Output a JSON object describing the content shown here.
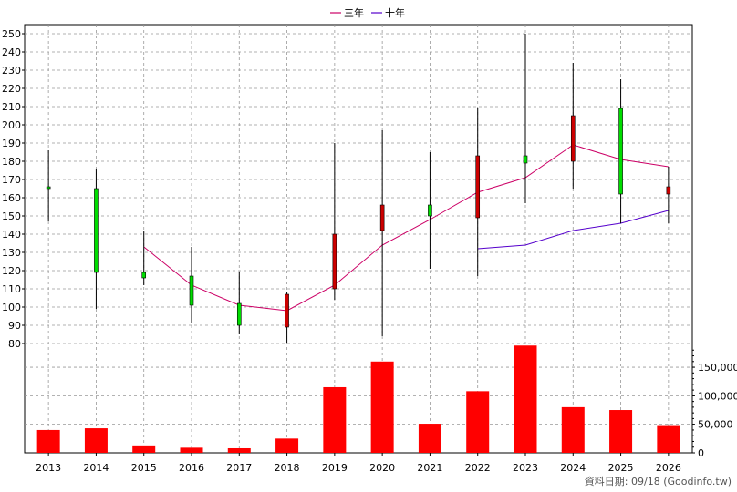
{
  "chart_data": {
    "type": "candlestick+bar",
    "legend": [
      {
        "name": "三年",
        "color": "#cc0066"
      },
      {
        "name": "十年",
        "color": "#5500cc"
      }
    ],
    "categories": [
      "2013",
      "2014",
      "2015",
      "2016",
      "2017",
      "2018",
      "2019",
      "2020",
      "2021",
      "2022",
      "2023",
      "2024",
      "2025",
      "2026"
    ],
    "price_axis": {
      "ticks": [
        80,
        90,
        100,
        110,
        120,
        130,
        140,
        150,
        160,
        170,
        180,
        190,
        200,
        210,
        220,
        230,
        240,
        250
      ],
      "ylim": [
        76,
        255
      ]
    },
    "volume_axis": {
      "ticks": [
        0,
        50000,
        100000,
        150000
      ],
      "tick_labels": [
        "0",
        "50,000",
        "100,000",
        "150,000"
      ],
      "ylim": [
        0,
        190000
      ]
    },
    "candles": [
      {
        "x": "2013",
        "open": 165,
        "close": 166,
        "high": 186,
        "low": 147
      },
      {
        "x": "2014",
        "open": 119,
        "close": 165,
        "high": 176,
        "low": 99
      },
      {
        "x": "2015",
        "open": 116,
        "close": 119,
        "high": 142,
        "low": 112
      },
      {
        "x": "2016",
        "open": 101,
        "close": 117,
        "high": 133,
        "low": 91
      },
      {
        "x": "2017",
        "open": 90,
        "close": 102,
        "high": 119,
        "low": 85
      },
      {
        "x": "2018",
        "open": 107,
        "close": 89,
        "high": 108,
        "low": 80
      },
      {
        "x": "2019",
        "open": 140,
        "close": 110,
        "high": 190,
        "low": 104
      },
      {
        "x": "2020",
        "open": 156,
        "close": 142,
        "high": 197,
        "low": 84
      },
      {
        "x": "2021",
        "open": 150,
        "close": 156,
        "high": 185,
        "low": 121
      },
      {
        "x": "2022",
        "open": 183,
        "close": 149,
        "high": 209,
        "low": 117
      },
      {
        "x": "2023",
        "open": 179,
        "close": 183,
        "high": 250,
        "low": 157
      },
      {
        "x": "2024",
        "open": 205,
        "close": 180,
        "high": 234,
        "low": 165
      },
      {
        "x": "2025",
        "open": 162,
        "close": 209,
        "high": 225,
        "low": 146
      },
      {
        "x": "2026",
        "open": 166,
        "close": 162,
        "high": 177,
        "low": 146
      }
    ],
    "series": [
      {
        "name": "三年",
        "values": [
          null,
          null,
          133,
          112,
          101,
          98,
          112,
          134,
          148,
          163,
          171,
          189,
          181,
          177
        ]
      },
      {
        "name": "十年",
        "values": [
          null,
          null,
          null,
          null,
          null,
          null,
          null,
          null,
          null,
          132,
          134,
          142,
          146,
          153
        ]
      }
    ],
    "volume": [
      40000,
      43000,
      13000,
      9000,
      8000,
      25000,
      115000,
      160000,
      51000,
      108000,
      188000,
      80000,
      75000,
      47000
    ],
    "colors": {
      "up": "#00dd00",
      "down": "#cc0000",
      "wick": "#000000",
      "volume_bar": "#ff0000",
      "grid": "#999999"
    }
  },
  "footer": "資料日期: 09/18 (Goodinfo.tw)"
}
